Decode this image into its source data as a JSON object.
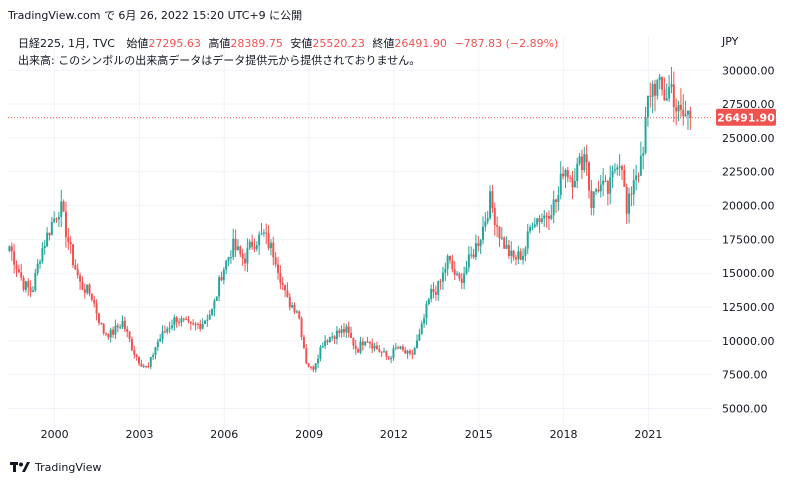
{
  "header": {
    "attribution": "TradingView.com で 6月 26, 2022 15:20 UTC+9 に公開"
  },
  "legend": {
    "symbol": "日経225, 1月, TVC",
    "open_label": "始値",
    "open_value": "27295.63",
    "high_label": "高値",
    "high_value": "28389.75",
    "low_label": "安値",
    "low_value": "25520.23",
    "close_label": "終値",
    "close_value": "26491.90",
    "change": "−787.83 (−2.89%)",
    "volume_note": "出来高: このシンボルの出来高データはデータ提供元から提供されておりません。"
  },
  "currency": "JPY",
  "last_price_label": "26491.90",
  "footer": {
    "brand": "TradingView"
  },
  "colors": {
    "up": "#26a69a",
    "down": "#ef5350",
    "grid": "#f0f3fa",
    "text": "#131722"
  },
  "chart_data": {
    "type": "candlestick",
    "interval": "1M",
    "x_ticks": [
      "2000",
      "2003",
      "2006",
      "2009",
      "2012",
      "2015",
      "2018",
      "2021"
    ],
    "y_ticks": [
      "5000.00",
      "7500.00",
      "10000.00",
      "12500.00",
      "15000.00",
      "17500.00",
      "20000.00",
      "22500.00",
      "25000.00",
      "27500.00",
      "30000.00"
    ],
    "ylim": [
      4000,
      31500
    ],
    "xlim": [
      1998.35,
      2023.25
    ],
    "last_price": 26491.9,
    "grid": true,
    "path": [
      [
        1998.4,
        17000
      ],
      [
        1998.9,
        14200
      ],
      [
        1999.2,
        13600
      ],
      [
        1999.5,
        16500
      ],
      [
        1999.9,
        18700
      ],
      [
        2000.2,
        20000
      ],
      [
        2000.6,
        16300
      ],
      [
        2000.9,
        14200
      ],
      [
        2001.3,
        13400
      ],
      [
        2001.7,
        10700
      ],
      [
        2002.0,
        10500
      ],
      [
        2002.4,
        11400
      ],
      [
        2002.8,
        9200
      ],
      [
        2003.0,
        8500
      ],
      [
        2003.3,
        7900
      ],
      [
        2003.6,
        9800
      ],
      [
        2004.0,
        11000
      ],
      [
        2004.3,
        11700
      ],
      [
        2004.8,
        11000
      ],
      [
        2005.2,
        11300
      ],
      [
        2005.6,
        12300
      ],
      [
        2005.9,
        15000
      ],
      [
        2006.3,
        17000
      ],
      [
        2006.7,
        16000
      ],
      [
        2007.0,
        17300
      ],
      [
        2007.4,
        17800
      ],
      [
        2007.8,
        16300
      ],
      [
        2008.2,
        13000
      ],
      [
        2008.6,
        12300
      ],
      [
        2008.9,
        8500
      ],
      [
        2009.1,
        7800
      ],
      [
        2009.5,
        10000
      ],
      [
        2009.9,
        10500
      ],
      [
        2010.3,
        10800
      ],
      [
        2010.7,
        9300
      ],
      [
        2011.0,
        10300
      ],
      [
        2011.3,
        9600
      ],
      [
        2011.8,
        8700
      ],
      [
        2012.1,
        9500
      ],
      [
        2012.6,
        8800
      ],
      [
        2012.9,
        10300
      ],
      [
        2013.3,
        13500
      ],
      [
        2013.6,
        14000
      ],
      [
        2013.9,
        16000
      ],
      [
        2014.3,
        14300
      ],
      [
        2014.8,
        16500
      ],
      [
        2015.1,
        18000
      ],
      [
        2015.4,
        20400
      ],
      [
        2015.8,
        17500
      ],
      [
        2016.2,
        16000
      ],
      [
        2016.6,
        16500
      ],
      [
        2016.9,
        19000
      ],
      [
        2017.3,
        19200
      ],
      [
        2017.8,
        20500
      ],
      [
        2018.0,
        23000
      ],
      [
        2018.3,
        22000
      ],
      [
        2018.8,
        24000
      ],
      [
        2018.95,
        20000
      ],
      [
        2019.2,
        21500
      ],
      [
        2019.6,
        21000
      ],
      [
        2019.9,
        23500
      ],
      [
        2020.1,
        23200
      ],
      [
        2020.2,
        18900
      ],
      [
        2020.5,
        22300
      ],
      [
        2020.8,
        23200
      ],
      [
        2020.95,
        27400
      ],
      [
        2021.1,
        28800
      ],
      [
        2021.3,
        28900
      ],
      [
        2021.6,
        28000
      ],
      [
        2021.8,
        29000
      ],
      [
        2022.0,
        27000
      ],
      [
        2022.2,
        26500
      ],
      [
        2022.4,
        26800
      ],
      [
        2022.5,
        26492
      ]
    ]
  }
}
